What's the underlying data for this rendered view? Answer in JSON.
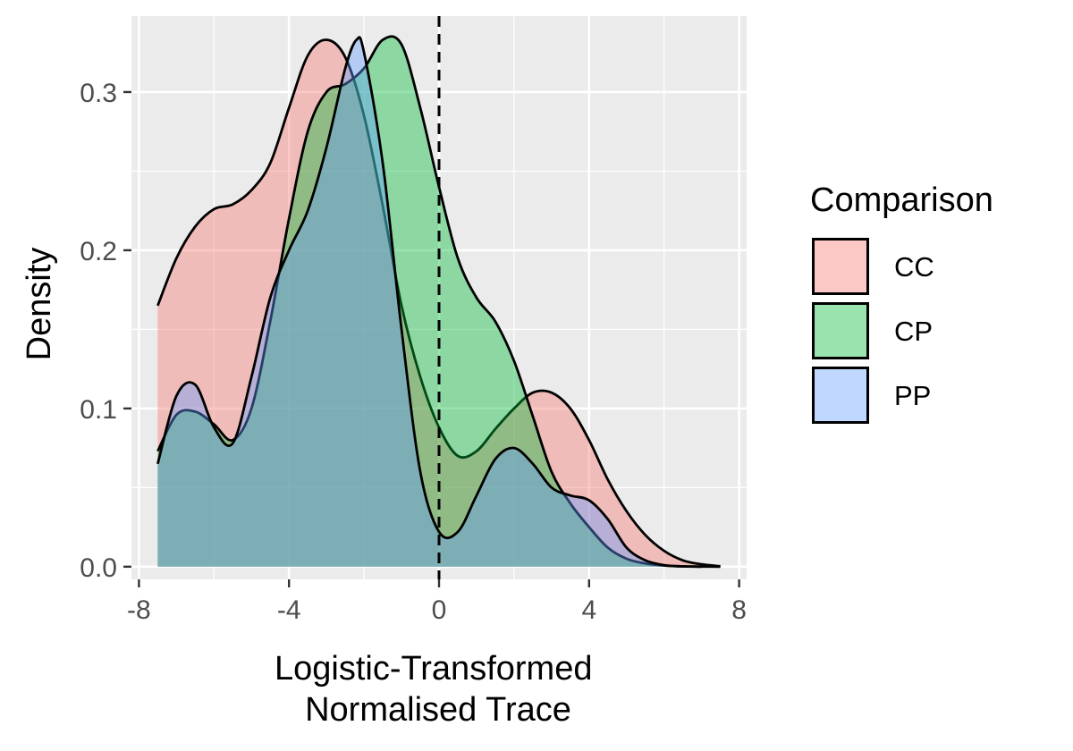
{
  "chart_data": {
    "type": "area",
    "xlabel": [
      "Logistic-Transformed",
      "Normalised Trace"
    ],
    "ylabel": "Density",
    "xlim": [
      -8.2,
      8.2
    ],
    "ylim": [
      -0.008,
      0.348
    ],
    "x_ticks": [
      -8,
      -4,
      0,
      4,
      8
    ],
    "x_tick_labels": [
      "-8",
      "-4",
      "0",
      "4",
      "8"
    ],
    "y_ticks": [
      0.0,
      0.1,
      0.2,
      0.3
    ],
    "y_tick_labels": [
      "0.0",
      "0.1",
      "0.2",
      "0.3"
    ],
    "grid": true,
    "reference_line": {
      "x": 0,
      "style": "dashed"
    },
    "legend": {
      "title": "Comparison",
      "position": "right"
    },
    "series": [
      {
        "name": "CC",
        "color": "#F8766D",
        "points": [
          [
            -7.5,
            0.165
          ],
          [
            -7,
            0.195
          ],
          [
            -6.5,
            0.215
          ],
          [
            -6,
            0.226
          ],
          [
            -5.5,
            0.229
          ],
          [
            -5,
            0.238
          ],
          [
            -4.5,
            0.255
          ],
          [
            -4,
            0.29
          ],
          [
            -3.5,
            0.323
          ],
          [
            -3,
            0.333
          ],
          [
            -2.5,
            0.322
          ],
          [
            -2,
            0.285
          ],
          [
            -1.5,
            0.228
          ],
          [
            -1,
            0.165
          ],
          [
            -0.5,
            0.12
          ],
          [
            0,
            0.088
          ],
          [
            0.5,
            0.07
          ],
          [
            1,
            0.073
          ],
          [
            1.5,
            0.087
          ],
          [
            2,
            0.1
          ],
          [
            2.5,
            0.11
          ],
          [
            3,
            0.11
          ],
          [
            3.5,
            0.1
          ],
          [
            4,
            0.08
          ],
          [
            4.5,
            0.055
          ],
          [
            5,
            0.035
          ],
          [
            5.5,
            0.02
          ],
          [
            6,
            0.01
          ],
          [
            6.5,
            0.004
          ],
          [
            7,
            0.0015
          ],
          [
            7.5,
            0.0003
          ]
        ]
      },
      {
        "name": "CP",
        "color": "#00BA38",
        "points": [
          [
            -7.5,
            0.073
          ],
          [
            -7,
            0.096
          ],
          [
            -6.5,
            0.098
          ],
          [
            -6,
            0.09
          ],
          [
            -5.5,
            0.08
          ],
          [
            -5,
            0.1
          ],
          [
            -4.5,
            0.155
          ],
          [
            -4,
            0.22
          ],
          [
            -3.5,
            0.275
          ],
          [
            -3,
            0.3
          ],
          [
            -2.5,
            0.305
          ],
          [
            -2,
            0.315
          ],
          [
            -1.5,
            0.333
          ],
          [
            -1,
            0.33
          ],
          [
            -0.5,
            0.29
          ],
          [
            0,
            0.24
          ],
          [
            0.5,
            0.195
          ],
          [
            1,
            0.17
          ],
          [
            1.5,
            0.155
          ],
          [
            2,
            0.13
          ],
          [
            2.5,
            0.095
          ],
          [
            3,
            0.06
          ],
          [
            3.5,
            0.04
          ],
          [
            4,
            0.025
          ],
          [
            4.5,
            0.012
          ],
          [
            5,
            0.005
          ],
          [
            5.5,
            0.002
          ],
          [
            6,
            0.0007
          ],
          [
            6.5,
            0.0002
          ],
          [
            7,
            0.0001
          ],
          [
            7.5,
            0.0
          ]
        ]
      },
      {
        "name": "PP",
        "color": "#619CFF",
        "points": [
          [
            -7.5,
            0.065
          ],
          [
            -7,
            0.108
          ],
          [
            -6.5,
            0.115
          ],
          [
            -6,
            0.088
          ],
          [
            -5.5,
            0.078
          ],
          [
            -5,
            0.12
          ],
          [
            -4.5,
            0.17
          ],
          [
            -4,
            0.2
          ],
          [
            -3.5,
            0.225
          ],
          [
            -3,
            0.265
          ],
          [
            -2.5,
            0.315
          ],
          [
            -2.2,
            0.333
          ],
          [
            -2,
            0.325
          ],
          [
            -1.5,
            0.255
          ],
          [
            -1,
            0.15
          ],
          [
            -0.5,
            0.06
          ],
          [
            0,
            0.022
          ],
          [
            0.5,
            0.022
          ],
          [
            1,
            0.045
          ],
          [
            1.5,
            0.068
          ],
          [
            2,
            0.075
          ],
          [
            2.5,
            0.065
          ],
          [
            3,
            0.05
          ],
          [
            3.5,
            0.045
          ],
          [
            4,
            0.042
          ],
          [
            4.5,
            0.03
          ],
          [
            5,
            0.012
          ],
          [
            5.5,
            0.004
          ],
          [
            6,
            0.001
          ],
          [
            6.5,
            0.0002
          ],
          [
            7,
            0.0
          ]
        ]
      }
    ]
  }
}
